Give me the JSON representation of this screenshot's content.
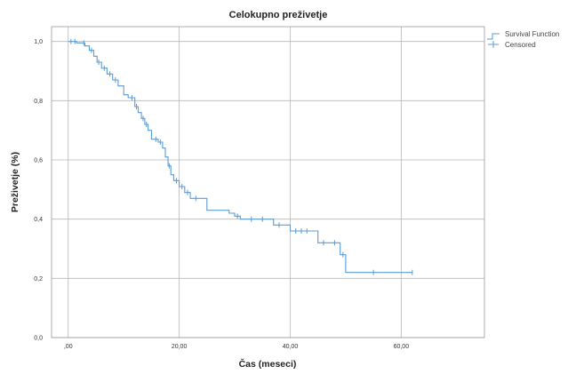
{
  "chart_data": {
    "type": "line",
    "title": "Celokupno preživetje",
    "xlabel": "Čas (meseci)",
    "ylabel": "Preživetje (%)",
    "xlim": [
      -3,
      75
    ],
    "ylim": [
      0.0,
      1.05
    ],
    "x_ticks": [
      {
        "value": 0,
        "label": ",00"
      },
      {
        "value": 20,
        "label": "20,00"
      },
      {
        "value": 40,
        "label": "40,00"
      },
      {
        "value": 60,
        "label": "60,00"
      }
    ],
    "y_ticks": [
      {
        "value": 0.0,
        "label": "0,0"
      },
      {
        "value": 0.2,
        "label": "0,2"
      },
      {
        "value": 0.4,
        "label": "0,4"
      },
      {
        "value": 0.6,
        "label": "0,6"
      },
      {
        "value": 0.8,
        "label": "0,8"
      },
      {
        "value": 1.0,
        "label": "1,0"
      }
    ],
    "grid": true,
    "legend_position": "top-right",
    "series": [
      {
        "name": "Survival Function",
        "color": "#5b9bd5",
        "step_points": [
          [
            0,
            1.0
          ],
          [
            1.5,
            1.0
          ],
          [
            1.5,
            0.995
          ],
          [
            3,
            0.995
          ],
          [
            3,
            0.985
          ],
          [
            3.8,
            0.985
          ],
          [
            3.8,
            0.97
          ],
          [
            4.6,
            0.97
          ],
          [
            4.6,
            0.95
          ],
          [
            5.2,
            0.95
          ],
          [
            5.2,
            0.93
          ],
          [
            6.0,
            0.93
          ],
          [
            6.0,
            0.91
          ],
          [
            7.0,
            0.91
          ],
          [
            7.0,
            0.89
          ],
          [
            8.0,
            0.89
          ],
          [
            8.0,
            0.87
          ],
          [
            9.0,
            0.87
          ],
          [
            9.0,
            0.85
          ],
          [
            10.0,
            0.85
          ],
          [
            10.0,
            0.82
          ],
          [
            10.8,
            0.82
          ],
          [
            10.8,
            0.81
          ],
          [
            12.0,
            0.81
          ],
          [
            12.0,
            0.78
          ],
          [
            12.6,
            0.78
          ],
          [
            12.6,
            0.76
          ],
          [
            13.2,
            0.76
          ],
          [
            13.2,
            0.74
          ],
          [
            13.8,
            0.74
          ],
          [
            13.8,
            0.72
          ],
          [
            14.4,
            0.72
          ],
          [
            14.4,
            0.7
          ],
          [
            15.0,
            0.7
          ],
          [
            15.0,
            0.67
          ],
          [
            16.2,
            0.67
          ],
          [
            16.2,
            0.66
          ],
          [
            17.0,
            0.66
          ],
          [
            17.0,
            0.64
          ],
          [
            17.5,
            0.64
          ],
          [
            17.5,
            0.61
          ],
          [
            18.0,
            0.61
          ],
          [
            18.0,
            0.58
          ],
          [
            18.5,
            0.58
          ],
          [
            18.5,
            0.55
          ],
          [
            19.0,
            0.55
          ],
          [
            19.0,
            0.53
          ],
          [
            20.0,
            0.53
          ],
          [
            20.0,
            0.51
          ],
          [
            21.0,
            0.51
          ],
          [
            21.0,
            0.49
          ],
          [
            22.0,
            0.49
          ],
          [
            22.0,
            0.47
          ],
          [
            25.0,
            0.47
          ],
          [
            25.0,
            0.43
          ],
          [
            29.0,
            0.43
          ],
          [
            29.0,
            0.42
          ],
          [
            30.0,
            0.42
          ],
          [
            30.0,
            0.41
          ],
          [
            31.0,
            0.41
          ],
          [
            31.0,
            0.4
          ],
          [
            37.0,
            0.4
          ],
          [
            37.0,
            0.38
          ],
          [
            40.0,
            0.38
          ],
          [
            40.0,
            0.36
          ],
          [
            45.0,
            0.36
          ],
          [
            45.0,
            0.32
          ],
          [
            49.0,
            0.32
          ],
          [
            49.0,
            0.28
          ],
          [
            50.0,
            0.28
          ],
          [
            50.0,
            0.22
          ],
          [
            62.0,
            0.22
          ]
        ]
      },
      {
        "name": "Censored",
        "color": "#5b9bd5",
        "points": [
          [
            0.5,
            1.0
          ],
          [
            1.2,
            1.0
          ],
          [
            2.8,
            0.995
          ],
          [
            4.2,
            0.97
          ],
          [
            5.5,
            0.93
          ],
          [
            6.5,
            0.91
          ],
          [
            7.5,
            0.89
          ],
          [
            8.5,
            0.87
          ],
          [
            11.5,
            0.81
          ],
          [
            12.3,
            0.78
          ],
          [
            13.5,
            0.74
          ],
          [
            14.1,
            0.72
          ],
          [
            15.8,
            0.67
          ],
          [
            16.6,
            0.66
          ],
          [
            18.2,
            0.58
          ],
          [
            19.5,
            0.53
          ],
          [
            20.5,
            0.51
          ],
          [
            21.5,
            0.49
          ],
          [
            23.0,
            0.47
          ],
          [
            30.5,
            0.41
          ],
          [
            33.0,
            0.4
          ],
          [
            35.0,
            0.4
          ],
          [
            38.0,
            0.38
          ],
          [
            41.0,
            0.36
          ],
          [
            42.0,
            0.36
          ],
          [
            43.0,
            0.36
          ],
          [
            46.0,
            0.32
          ],
          [
            48.0,
            0.32
          ],
          [
            49.5,
            0.28
          ],
          [
            55.0,
            0.22
          ],
          [
            62.0,
            0.22
          ]
        ]
      }
    ]
  }
}
